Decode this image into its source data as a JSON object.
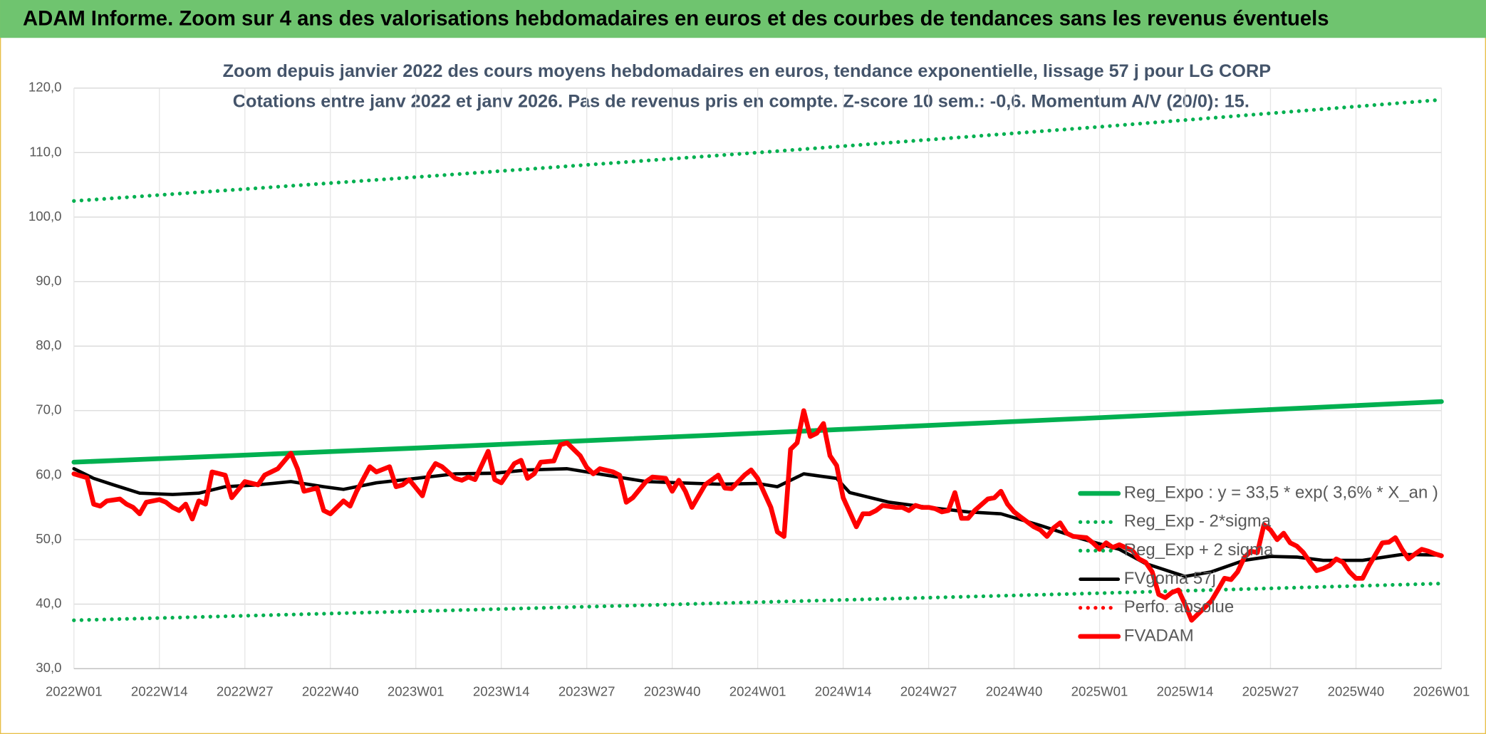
{
  "chart_data": {
    "type": "line",
    "title": "ADAM Informe. Zoom sur 4 ans des valorisations hebdomadaires en euros et des courbes de tendances sans les revenus éventuels",
    "subtitle": [
      "Zoom depuis janvier 2022 des cours moyens hebdomadaires en euros, tendance exponentielle, lissage 57 j pour LG CORP",
      "Cotations entre janv 2022 et janv 2026. Pas de revenus pris en compte. Z-score 10 sem.: -0,6. Momentum A/V (20/0): 15."
    ],
    "xlim": [
      0,
      208
    ],
    "xticks": [
      {
        "value": 0,
        "label": "2022W01"
      },
      {
        "value": 13,
        "label": "2022W14"
      },
      {
        "value": 26,
        "label": "2022W27"
      },
      {
        "value": 39,
        "label": "2022W40"
      },
      {
        "value": 52,
        "label": "2023W01"
      },
      {
        "value": 65,
        "label": "2023W14"
      },
      {
        "value": 78,
        "label": "2023W27"
      },
      {
        "value": 91,
        "label": "2023W40"
      },
      {
        "value": 104,
        "label": "2024W01"
      },
      {
        "value": 117,
        "label": "2024W14"
      },
      {
        "value": 130,
        "label": "2024W27"
      },
      {
        "value": 143,
        "label": "2024W40"
      },
      {
        "value": 156,
        "label": "2025W01"
      },
      {
        "value": 169,
        "label": "2025W14"
      },
      {
        "value": 182,
        "label": "2025W27"
      },
      {
        "value": 195,
        "label": "2025W40"
      },
      {
        "value": 208,
        "label": "2026W01"
      }
    ],
    "ylim": [
      30,
      120
    ],
    "yticks": [
      {
        "value": 30,
        "label": "30,0"
      },
      {
        "value": 40,
        "label": "40,0"
      },
      {
        "value": 50,
        "label": "50,0"
      },
      {
        "value": 60,
        "label": "60,0"
      },
      {
        "value": 70,
        "label": "70,0"
      },
      {
        "value": 80,
        "label": "80,0"
      },
      {
        "value": 90,
        "label": "90,0"
      },
      {
        "value": 100,
        "label": "100,0"
      },
      {
        "value": 110,
        "label": "110,0"
      },
      {
        "value": 120,
        "label": "120,0"
      }
    ],
    "grid": true,
    "legend": "right",
    "series": [
      {
        "name": "Reg_Expo : y = 33,5 * exp( 3,6% *  X_an )",
        "color": "#00b050",
        "style": "solid",
        "x": [
          0,
          52,
          104,
          156,
          208
        ],
        "values": [
          62,
          64.2,
          66.5,
          68.9,
          71.4
        ]
      },
      {
        "name": "Reg_Exp - 2*sigma",
        "color": "#00b050",
        "style": "dotted",
        "x": [
          0,
          52,
          104,
          156,
          208
        ],
        "values": [
          37.5,
          38.9,
          40.3,
          41.7,
          43.2
        ]
      },
      {
        "name": "Reg_Exp + 2 sigma",
        "color": "#00b050",
        "style": "dotted",
        "x": [
          0,
          52,
          104,
          156,
          208
        ],
        "values": [
          102.5,
          106.2,
          110,
          114,
          118.2
        ]
      },
      {
        "name": "FVgoma 57j",
        "color": "#000000",
        "style": "solid",
        "x": [
          0,
          3,
          6,
          10,
          15,
          19,
          23,
          28,
          33,
          38,
          41,
          46,
          52,
          58,
          64,
          69,
          75,
          81,
          87,
          92,
          98,
          104,
          107,
          111,
          116,
          118,
          124,
          130,
          136,
          141,
          147,
          153,
          159,
          163,
          169,
          173,
          178,
          182,
          186,
          190,
          196,
          202,
          208
        ],
        "values": [
          61,
          59.5,
          58.5,
          57.2,
          57,
          57.2,
          58.2,
          58.5,
          59,
          58.2,
          57.8,
          58.8,
          59.5,
          60.2,
          60.3,
          60.8,
          61,
          60,
          59,
          58.8,
          58.6,
          58.7,
          58.2,
          60.2,
          59.5,
          57.3,
          55.8,
          55,
          54.3,
          54,
          52.2,
          50.2,
          48.5,
          46.3,
          44.3,
          45,
          46.8,
          47.4,
          47.3,
          46.8,
          46.8,
          47.7,
          47.6
        ]
      },
      {
        "name": "Perfo. absolue",
        "color": "#ff0000",
        "style": "dotted",
        "x": [],
        "values": []
      },
      {
        "name": "FVADAM",
        "color": "#ff0000",
        "style": "solid",
        "x": [
          0,
          2,
          3,
          4,
          5,
          7,
          8,
          9,
          10,
          11,
          13,
          14,
          15,
          16,
          17,
          18,
          19,
          20,
          21,
          23,
          24,
          26,
          28,
          29,
          31,
          33,
          34,
          35,
          37,
          38,
          39,
          41,
          42,
          43,
          45,
          46,
          48,
          49,
          50,
          51,
          53,
          54,
          55,
          56,
          58,
          59,
          60,
          61,
          63,
          64,
          65,
          67,
          68,
          69,
          70,
          71,
          73,
          74,
          75,
          77,
          78,
          79,
          80,
          82,
          83,
          84,
          85,
          87,
          88,
          90,
          91,
          92,
          93,
          94,
          96,
          98,
          99,
          100,
          102,
          103,
          104,
          106,
          107,
          108,
          109,
          110,
          111,
          112,
          113,
          114,
          115,
          116,
          117,
          119,
          120,
          121,
          122,
          123,
          125,
          126,
          127,
          128,
          129,
          130,
          131,
          132,
          133,
          134,
          135,
          136,
          137,
          139,
          140,
          141,
          142,
          143,
          144,
          146,
          147,
          148,
          149,
          150,
          151,
          152,
          154,
          155,
          156,
          157,
          158,
          159,
          161,
          162,
          163,
          164,
          165,
          166,
          167,
          168,
          169,
          170,
          172,
          173,
          174,
          175,
          176,
          177,
          178,
          179,
          180,
          181,
          182,
          183,
          184,
          185,
          186,
          187,
          188,
          189,
          190,
          191,
          192,
          193,
          194,
          195,
          196,
          197,
          199,
          200,
          201,
          202,
          203,
          204,
          205,
          206,
          207,
          208
        ],
        "values": [
          60.2,
          59.6,
          55.5,
          55.2,
          56,
          56.3,
          55.5,
          55,
          54,
          55.8,
          56.2,
          55.8,
          55,
          54.5,
          55.5,
          53.2,
          56,
          55.5,
          60.5,
          60,
          56.5,
          59,
          58.5,
          60,
          61,
          63.4,
          61,
          57.5,
          58,
          54.5,
          54,
          56,
          55.2,
          57.5,
          61.3,
          60.5,
          61.3,
          58.2,
          58.5,
          59.3,
          56.8,
          60.2,
          61.8,
          61.3,
          59.5,
          59.2,
          59.7,
          59.3,
          63.7,
          59.3,
          58.8,
          61.8,
          62.3,
          59.5,
          60.2,
          62,
          62.2,
          64.7,
          65,
          63,
          61.2,
          60.2,
          61,
          60.5,
          60,
          55.8,
          56.5,
          59,
          59.7,
          59.5,
          57.5,
          59.2,
          57.5,
          55,
          58.5,
          60,
          58,
          57.9,
          60,
          60.8,
          59.5,
          55,
          51.2,
          50.5,
          64,
          65,
          70,
          66,
          66.5,
          68,
          63,
          61.5,
          56.5,
          52,
          54,
          54,
          54.5,
          55.3,
          55,
          55,
          54.5,
          55.3,
          55,
          55,
          54.8,
          54.3,
          54.5,
          57.3,
          53.3,
          53.3,
          54.5,
          56.3,
          56.5,
          57.5,
          55.5,
          54.3,
          53.5,
          52,
          51.5,
          50.5,
          51.8,
          52.6,
          51,
          50.5,
          50.3,
          49.5,
          48.5,
          49.5,
          48.8,
          49.2,
          48.3,
          47,
          46.5,
          45,
          41.5,
          41,
          41.8,
          42.2,
          40,
          37.5,
          39.5,
          40.5,
          42.2,
          44,
          43.8,
          45,
          47.2,
          48.2,
          48,
          52.3,
          51.5,
          50,
          51,
          49.5,
          49,
          48,
          46.5,
          45.2,
          45.5,
          46,
          47,
          46.5,
          45,
          44,
          44,
          46,
          49.5,
          49.6,
          50.3,
          48.5,
          47,
          47.8,
          48.5,
          48.2,
          47.8,
          47.5
        ]
      }
    ]
  }
}
